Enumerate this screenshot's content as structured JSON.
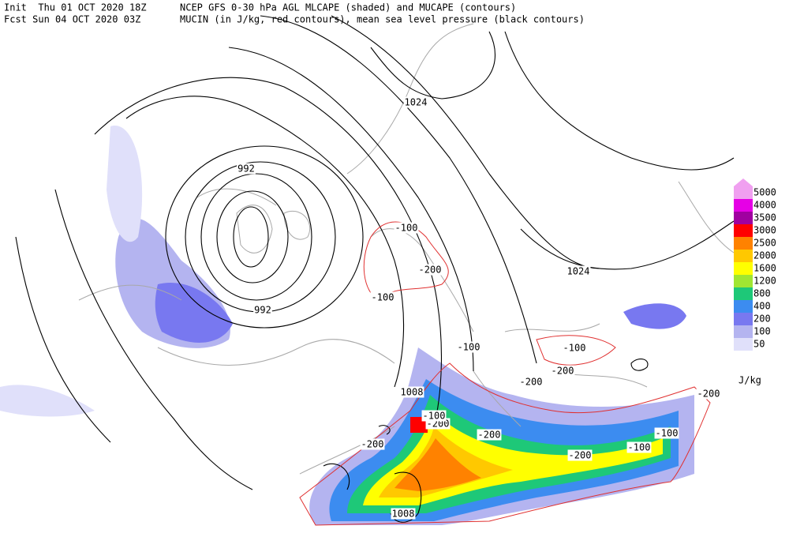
{
  "header": {
    "init": "Init  Thu 01 OCT 2020 18Z",
    "fcst": "Fcst Sun 04 OCT 2020 03Z",
    "line1": "NCEP GFS 0-30 hPa AGL MLCAPE (shaded) and MUCAPE (contours)",
    "line2": "MUCIN (in J/kg, red contours), mean sea level pressure (black contours)"
  },
  "legend": {
    "unit": "J/kg",
    "levels": [
      {
        "label": "5000",
        "color": "#f0a0f0"
      },
      {
        "label": "4000",
        "color": "#e600e6"
      },
      {
        "label": "3500",
        "color": "#a000a0"
      },
      {
        "label": "3000",
        "color": "#ff0000"
      },
      {
        "label": "2500",
        "color": "#ff8200"
      },
      {
        "label": "2000",
        "color": "#ffc800"
      },
      {
        "label": "1600",
        "color": "#ffff00"
      },
      {
        "label": "1200",
        "color": "#a0e632"
      },
      {
        "label": "800",
        "color": "#1ec878"
      },
      {
        "label": "400",
        "color": "#3c8cf0"
      },
      {
        "label": "200",
        "color": "#7878f0"
      },
      {
        "label": "100",
        "color": "#b4b4f0"
      },
      {
        "label": "50",
        "color": "#e0e0fa"
      }
    ]
  },
  "pressure_labels": [
    "992",
    "992",
    "1024",
    "1024",
    "1008",
    "1008"
  ],
  "cin_labels": [
    "-100",
    "-200",
    "-100",
    "-100",
    "-100",
    "-200",
    "-200",
    "-100",
    "-200",
    "-200",
    "-200",
    "-100",
    "-100",
    "-200",
    "-200"
  ]
}
